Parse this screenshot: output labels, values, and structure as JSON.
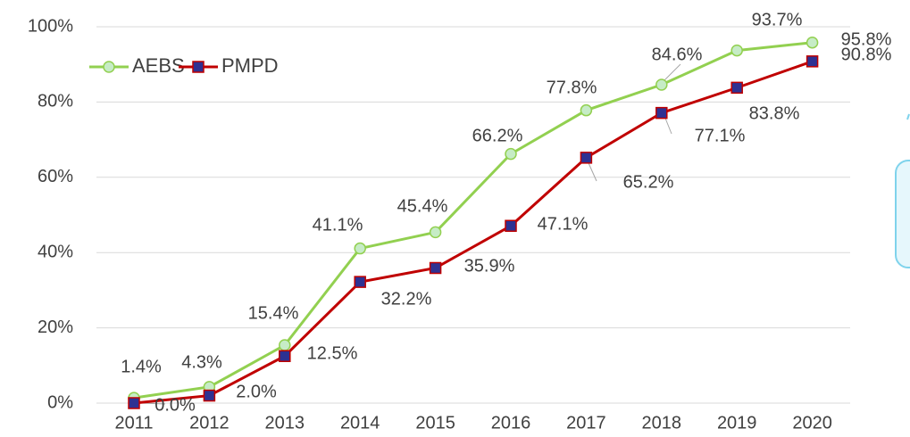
{
  "chart_data": {
    "type": "line",
    "categories": [
      "2011",
      "2012",
      "2013",
      "2014",
      "2015",
      "2016",
      "2017",
      "2018",
      "2019",
      "2020"
    ],
    "series": [
      {
        "name": "AEBS",
        "color": "#92d050",
        "marker_fill": "#c6ecc6",
        "values": [
          1.4,
          4.3,
          15.4,
          41.1,
          45.4,
          66.2,
          77.8,
          84.6,
          93.7,
          95.8
        ],
        "value_labels": [
          "1.4%",
          "4.3%",
          "15.4%",
          "41.1%",
          "45.4%",
          "66.2%",
          "77.8%",
          "84.6%",
          "93.7%",
          "95.8%"
        ]
      },
      {
        "name": "PMPD",
        "color": "#c00000",
        "marker_fill": "#2e3192",
        "values": [
          0,
          2.0,
          12.5,
          32.2,
          35.9,
          47.1,
          65.2,
          77.1,
          83.8,
          90.8
        ],
        "value_labels": [
          "0.0%",
          "2.0%",
          "12.5%",
          "32.2%",
          "35.9%",
          "47.1%",
          "65.2%",
          "77.1%",
          "83.8%",
          "90.8%"
        ]
      }
    ],
    "ylim": [
      0,
      100
    ],
    "yticks": [
      {
        "value": 0,
        "label": "0%"
      },
      {
        "value": 20,
        "label": "20%"
      },
      {
        "value": 40,
        "label": "40%"
      },
      {
        "value": 60,
        "label": "60%"
      },
      {
        "value": 80,
        "label": "80%"
      },
      {
        "value": 100,
        "label": "100%"
      }
    ],
    "grid": true,
    "legend": "top-left"
  }
}
